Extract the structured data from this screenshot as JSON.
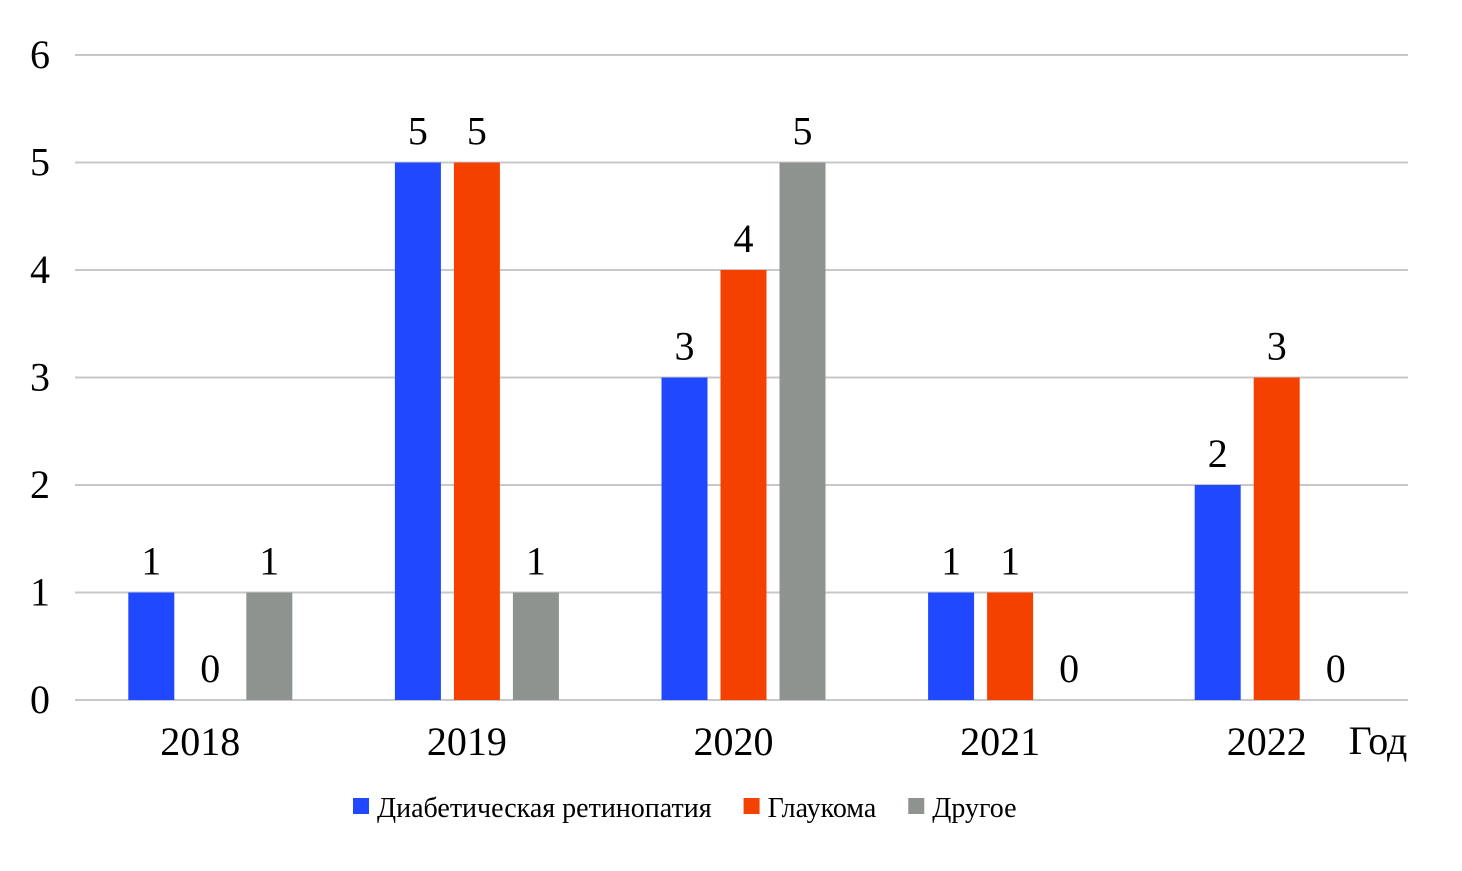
{
  "chart_data": {
    "type": "bar",
    "title": "",
    "xlabel": "Год",
    "ylabel": "",
    "ylim": [
      0,
      6
    ],
    "yticks": [
      "0",
      "1",
      "2",
      "3",
      "4",
      "5",
      "6"
    ],
    "grid": true,
    "legend_position": "bottom",
    "categories": [
      "2018",
      "2019",
      "2020",
      "2021",
      "2022"
    ],
    "series": [
      {
        "name": "Диабетическая ретинопатия",
        "color": "#1f48ff",
        "values": [
          1,
          5,
          3,
          1,
          2
        ]
      },
      {
        "name": "Глаукома",
        "color": "#f54100",
        "values": [
          0,
          5,
          4,
          1,
          3
        ]
      },
      {
        "name": "Другое",
        "color": "#8f9390",
        "values": [
          1,
          1,
          5,
          0,
          0
        ]
      }
    ]
  }
}
